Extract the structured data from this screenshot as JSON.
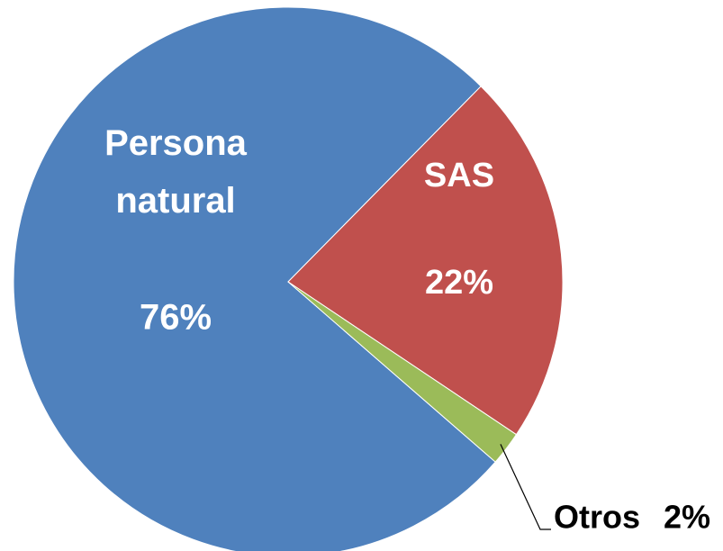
{
  "chart_data": {
    "type": "pie",
    "categories": [
      "Persona natural",
      "SAS",
      "Otros"
    ],
    "values": [
      76,
      22,
      2
    ],
    "value_labels": [
      "76%",
      "22%",
      "2%"
    ],
    "colors": [
      "#4f81bd",
      "#c0504d",
      "#9bbb59"
    ]
  }
}
